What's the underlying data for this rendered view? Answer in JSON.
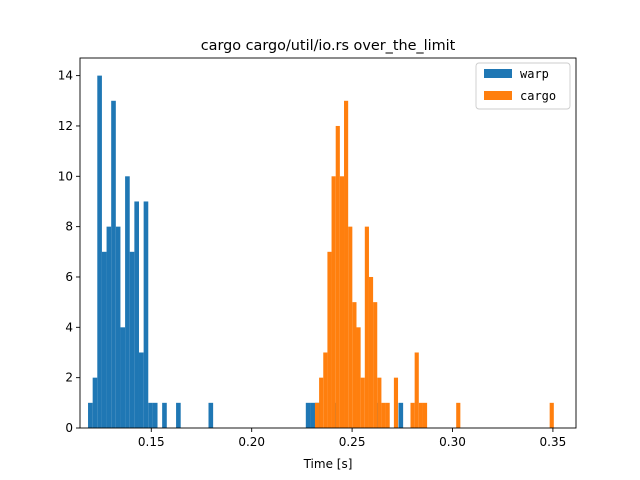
{
  "chart_data": {
    "type": "bar",
    "title": "cargo cargo/util/io.rs over_the_limit",
    "xlabel": "Time [s]",
    "ylabel": "",
    "xlim": [
      0.1145,
      0.3615
    ],
    "ylim": [
      0,
      14.7
    ],
    "xticks": [
      0.15,
      0.2,
      0.25,
      0.3,
      0.35
    ],
    "xtick_labels": [
      "0.15",
      "0.20",
      "0.25",
      "0.30",
      "0.35"
    ],
    "yticks": [
      0,
      2,
      4,
      6,
      8,
      10,
      12,
      14
    ],
    "ytick_labels": [
      "0",
      "2",
      "4",
      "6",
      "8",
      "10",
      "12",
      "14"
    ],
    "legend_position": "top-right",
    "grid": false,
    "series": [
      {
        "name": "warp",
        "color": "#1f77b4",
        "bin_width": 0.002307,
        "bins_start": [
          0.1185,
          0.12081,
          0.12311,
          0.12542,
          0.12773,
          0.13003,
          0.13234,
          0.13465,
          0.13696,
          0.13926,
          0.14157,
          0.14388,
          0.14619,
          0.14849,
          0.1508,
          0.15541,
          0.16234,
          0.17849,
          0.22695,
          0.22926,
          0.23157,
          0.2408,
          0.26157,
          0.27311
        ],
        "counts": [
          1,
          2,
          14,
          7,
          8,
          13,
          8,
          4,
          10,
          7,
          9,
          3,
          9,
          1,
          1,
          1,
          1,
          1,
          1,
          1,
          1,
          1,
          1,
          1
        ]
      },
      {
        "name": "cargo",
        "color": "#ff7f0e",
        "bin_width": 0.002069,
        "bins_start": [
          0.2315,
          0.23357,
          0.23564,
          0.23771,
          0.23977,
          0.24184,
          0.24391,
          0.24598,
          0.24805,
          0.25012,
          0.25219,
          0.25426,
          0.25633,
          0.25839,
          0.26046,
          0.26253,
          0.2646,
          0.26667,
          0.27081,
          0.27908,
          0.28115,
          0.28322,
          0.28529,
          0.30184,
          0.34839
        ],
        "counts": [
          1,
          2,
          3,
          7,
          10,
          12,
          10,
          13,
          8,
          5,
          4,
          2,
          8,
          6,
          5,
          2,
          1,
          1,
          2,
          1,
          3,
          1,
          1,
          1,
          1
        ]
      }
    ]
  }
}
